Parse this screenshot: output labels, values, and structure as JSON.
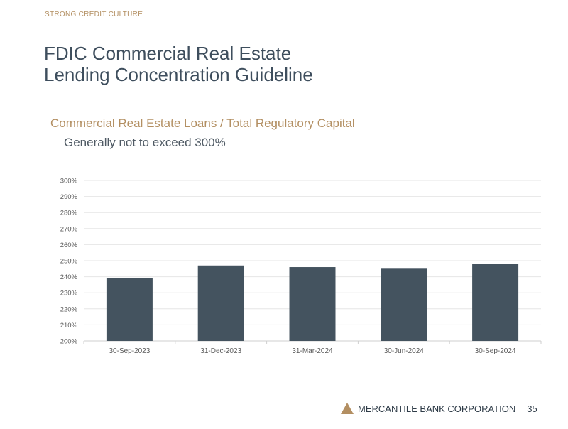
{
  "header": {
    "eyebrow": "STRONG CREDIT CULTURE",
    "title_line1": "FDIC Commercial Real Estate",
    "title_line2": "Lending Concentration Guideline",
    "subtitle": "Commercial Real Estate Loans / Total Regulatory Capital",
    "subnote": "Generally not to exceed 300%"
  },
  "footer": {
    "company": "MERCANTILE BANK CORPORATION",
    "page_number": "35"
  },
  "colors": {
    "bar": "#44535f",
    "accent": "#b38f62",
    "grid": "#e6e6e6",
    "tick_text": "#595959"
  },
  "chart_data": {
    "type": "bar",
    "categories": [
      "30-Sep-2023",
      "31-Dec-2023",
      "31-Mar-2024",
      "30-Jun-2024",
      "30-Sep-2024"
    ],
    "values": [
      239,
      247,
      246,
      245,
      248
    ],
    "ylim": [
      200,
      300
    ],
    "yticks": [
      200,
      210,
      220,
      230,
      240,
      250,
      260,
      270,
      280,
      290,
      300
    ],
    "y_tick_suffix": "%",
    "grid": true,
    "title": "",
    "xlabel": "",
    "ylabel": ""
  }
}
